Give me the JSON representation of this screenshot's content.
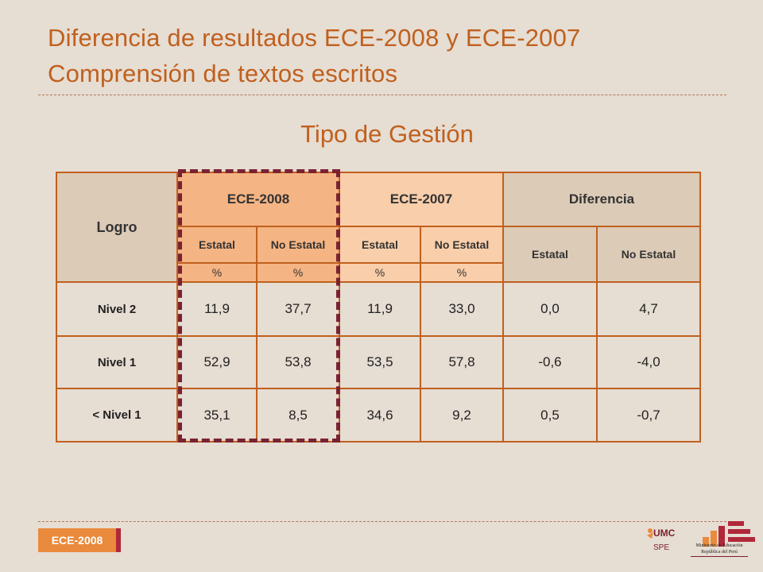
{
  "header": {
    "title_line1": "Diferencia de resultados ECE-2008 y ECE-2007",
    "title_line2": "Comprensión de textos escritos"
  },
  "subtitle": "Tipo de Gestión",
  "table": {
    "logro_label": "Logro",
    "groups": {
      "ece2008": "ECE-2008",
      "ece2007": "ECE-2007",
      "diferencia": "Diferencia"
    },
    "sub": {
      "estatal": "Estatal",
      "no_estatal": "No Estatal",
      "pct": "%"
    },
    "rows": [
      {
        "label": "Nivel 2",
        "ece2008_estatal": "11,9",
        "ece2008_no_estatal": "37,7",
        "ece2007_estatal": "11,9",
        "ece2007_no_estatal": "33,0",
        "dif_estatal": "0,0",
        "dif_no_estatal": "4,7"
      },
      {
        "label": "Nivel 1",
        "ece2008_estatal": "52,9",
        "ece2008_no_estatal": "53,8",
        "ece2007_estatal": "53,5",
        "ece2007_no_estatal": "57,8",
        "dif_estatal": "-0,6",
        "dif_no_estatal": "-4,0"
      },
      {
        "label": "< Nivel 1",
        "ece2008_estatal": "35,1",
        "ece2008_no_estatal": "8,5",
        "ece2007_estatal": "34,6",
        "ece2007_no_estatal": "9,2",
        "dif_estatal": "0,5",
        "dif_no_estatal": "-0,7"
      }
    ]
  },
  "footer": {
    "badge": "ECE-2008",
    "umc_logo_text": "UMC",
    "spe_label": "SPE",
    "ministry_line1": "Ministerio de Educación",
    "ministry_line2": "República del Perú"
  },
  "colors": {
    "accent": "#c0601e",
    "highlight_border": "#7a2230",
    "ece2008_fill": "#f5b483",
    "ece2007_fill": "#f9ceaa",
    "neutral_fill": "#dccbb7",
    "background": "#e6ddd3"
  },
  "icons": {
    "umc": "umc-logo-icon",
    "ministry": "minedu-logo-icon"
  }
}
